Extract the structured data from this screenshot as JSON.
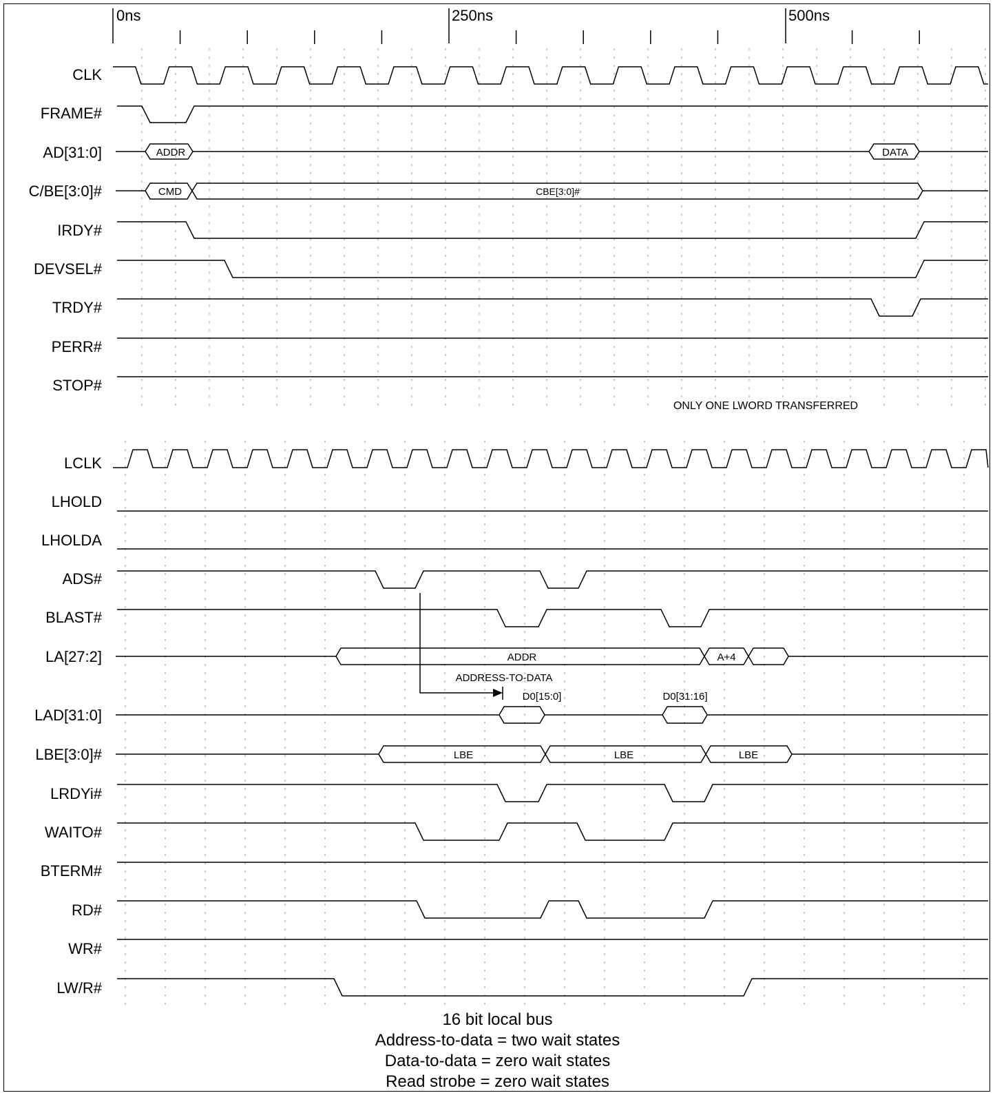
{
  "colors": {
    "line": "#000000",
    "grid": "#9a9a9a",
    "background": "#ffffff"
  },
  "time_axis": {
    "unit": "ns",
    "labels": [
      {
        "t": 0,
        "text": "0ns"
      },
      {
        "t": 250,
        "text": "250ns"
      },
      {
        "t": 500,
        "text": "500ns"
      }
    ],
    "minor_ticks_ns": [
      50,
      100,
      150,
      200,
      300,
      350,
      400,
      450,
      550,
      600
    ]
  },
  "pci_signals": {
    "clk": "CLK",
    "frame": "FRAME#",
    "ad": "AD[31:0]",
    "cbe": "C/BE[3:0]#",
    "irdy": "IRDY#",
    "devsel": "DEVSEL#",
    "trdy": "TRDY#",
    "perr": "PERR#",
    "stop": "STOP#"
  },
  "pci_bus_labels": {
    "ad_addr": "ADDR",
    "ad_data": "DATA",
    "cbe_cmd": "CMD",
    "cbe_value": "CBE[3:0]#"
  },
  "note": "ONLY ONE LWORD TRANSFERRED",
  "local_signals": {
    "lclk": "LCLK",
    "lhold": "LHOLD",
    "lholda": "LHOLDA",
    "ads": "ADS#",
    "blast": "BLAST#",
    "la": "LA[27:2]",
    "lad": "LAD[31:0]",
    "lbe": "LBE[3:0]#",
    "lrdyi": "LRDYi#",
    "waito": "WAITO#",
    "bterm": "BTERM#",
    "rd": "RD#",
    "wr": "WR#",
    "lwr": "LW/R#"
  },
  "local_bus_labels": {
    "la_addr": "ADDR",
    "la_a4": "A+4",
    "lad_d0": "D0[15:0]",
    "lad_d1": "D0[31:16]",
    "lbe_1": "LBE",
    "lbe_2": "LBE",
    "lbe_3": "LBE"
  },
  "arrow_label": "ADDRESS-TO-DATA",
  "caption": {
    "line1": "16 bit local bus",
    "line2": "Address-to-data = two wait states",
    "line3": "Data-to-data = zero wait states",
    "line4": "Read strobe = zero wait states"
  }
}
